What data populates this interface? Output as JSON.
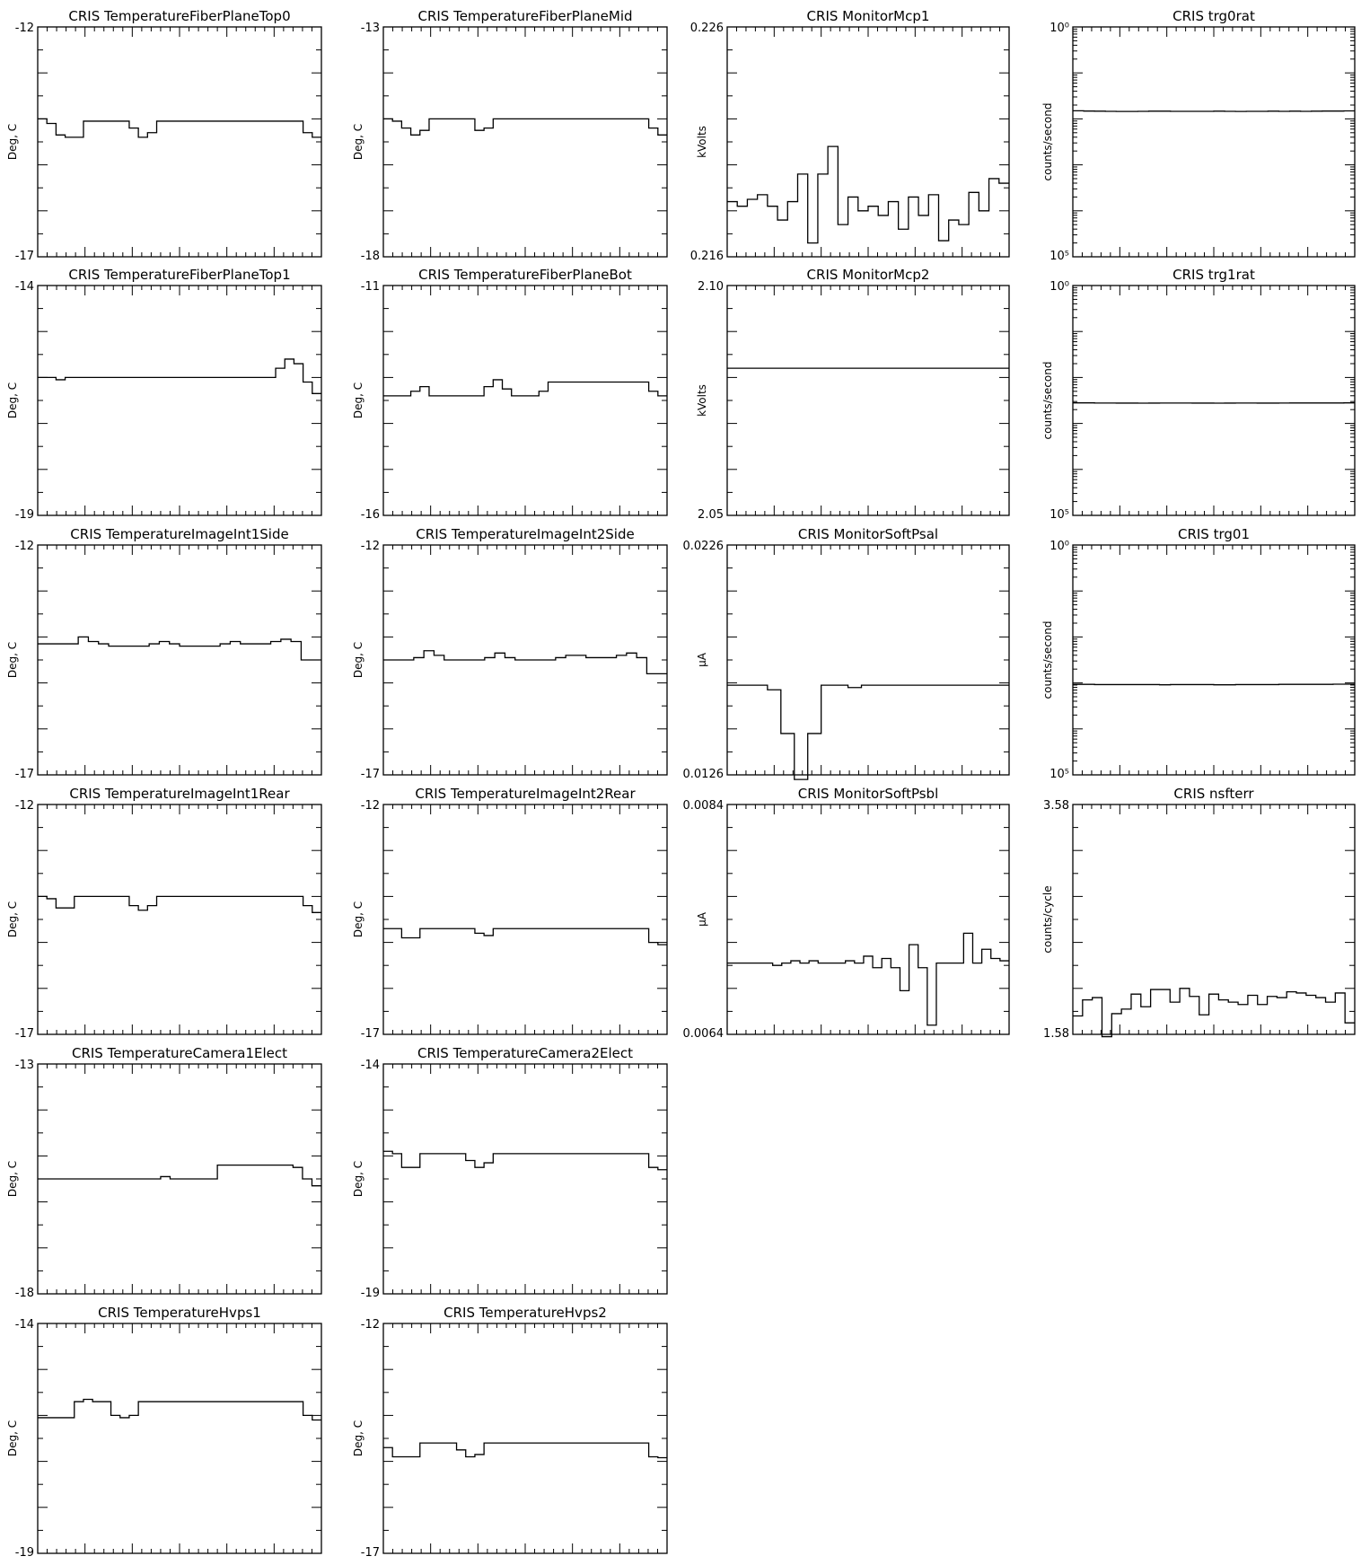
{
  "chart_data": [
    {
      "type": "line",
      "title": "CRIS  TemperatureFiberPlaneTop0",
      "ylabel": "Deg, C",
      "ylim": [
        -17,
        -12
      ],
      "ytick_labels": [
        "-12",
        "-17"
      ],
      "values": [
        -14,
        -14.1,
        -14.35,
        -14.4,
        -14.4,
        -14.05,
        -14.05,
        -14.05,
        -14.05,
        -14.05,
        -14.2,
        -14.4,
        -14.3,
        -14.05,
        -14.05,
        -14.05,
        -14.05,
        -14.05,
        -14.05,
        -14.05,
        -14.05,
        -14.05,
        -14.05,
        -14.05,
        -14.05,
        -14.05,
        -14.05,
        -14.05,
        -14.05,
        -14.3,
        -14.4
      ]
    },
    {
      "type": "line",
      "title": "CRIS  TemperatureFiberPlaneMid",
      "ylabel": "Deg, C",
      "ylim": [
        -18,
        -13
      ],
      "ytick_labels": [
        "-13",
        "-18"
      ],
      "values": [
        -15,
        -15.05,
        -15.2,
        -15.35,
        -15.25,
        -15.0,
        -15.0,
        -15.0,
        -15.0,
        -15.0,
        -15.25,
        -15.2,
        -15.0,
        -15.0,
        -15.0,
        -15.0,
        -15.0,
        -15.0,
        -15.0,
        -15.0,
        -15.0,
        -15.0,
        -15.0,
        -15.0,
        -15.0,
        -15.0,
        -15.0,
        -15.0,
        -15.0,
        -15.2,
        -15.35
      ]
    },
    {
      "type": "line",
      "title": "CRIS  MonitorMcp1",
      "ylabel": "kVolts",
      "ylim": [
        0.216,
        0.226
      ],
      "ytick_labels": [
        "0.226",
        "0.216"
      ],
      "values": [
        0.2184,
        0.2182,
        0.2185,
        0.2187,
        0.2182,
        0.2176,
        0.2184,
        0.2196,
        0.2166,
        0.2196,
        0.2208,
        0.2174,
        0.2186,
        0.218,
        0.2182,
        0.2178,
        0.2184,
        0.2172,
        0.2186,
        0.2178,
        0.2187,
        0.2167,
        0.2176,
        0.2174,
        0.2188,
        0.218,
        0.2194,
        0.2192
      ]
    },
    {
      "type": "line",
      "title": "CRIS  trg0rat",
      "ylabel": "counts/second",
      "yscale": "log",
      "ylim": [
        1,
        100000
      ],
      "ytick_labels": [
        "10⁰",
        "10⁵"
      ],
      "values": [
        1500,
        1480,
        1470,
        1460,
        1450,
        1450,
        1460,
        1470,
        1470,
        1460,
        1460,
        1460,
        1460,
        1470,
        1460,
        1450,
        1460,
        1460,
        1470,
        1460,
        1470,
        1460,
        1470,
        1480,
        1480,
        1490
      ]
    },
    {
      "type": "line",
      "title": "CRIS  TemperatureFiberPlaneTop1",
      "ylabel": "Deg, C",
      "ylim": [
        -19,
        -14
      ],
      "ytick_labels": [
        "-14",
        "-19"
      ],
      "values": [
        -16.0,
        -16.0,
        -16.05,
        -16.0,
        -16.0,
        -16.0,
        -16.0,
        -16.0,
        -16.0,
        -16.0,
        -16.0,
        -16.0,
        -16.0,
        -16.0,
        -16.0,
        -16.0,
        -16.0,
        -16.0,
        -16.0,
        -16.0,
        -16.0,
        -16.0,
        -16.0,
        -16.0,
        -16.0,
        -16.0,
        -15.8,
        -15.6,
        -15.7,
        -16.1,
        -16.35
      ]
    },
    {
      "type": "line",
      "title": "CRIS  TemperatureFiberPlaneBot",
      "ylabel": "Deg, C",
      "ylim": [
        -16,
        -11
      ],
      "ytick_labels": [
        "-11",
        "-16"
      ],
      "values": [
        -13.4,
        -13.4,
        -13.4,
        -13.3,
        -13.2,
        -13.4,
        -13.4,
        -13.4,
        -13.4,
        -13.4,
        -13.4,
        -13.2,
        -13.05,
        -13.25,
        -13.4,
        -13.4,
        -13.4,
        -13.3,
        -13.1,
        -13.1,
        -13.1,
        -13.1,
        -13.1,
        -13.1,
        -13.1,
        -13.1,
        -13.1,
        -13.1,
        -13.1,
        -13.3,
        -13.4
      ]
    },
    {
      "type": "line",
      "title": "CRIS  MonitorMcp2",
      "ylabel": "kVolts",
      "ylim": [
        2.05,
        2.1
      ],
      "ytick_labels": [
        "2.10",
        "2.05"
      ],
      "values": [
        2.082,
        2.082
      ]
    },
    {
      "type": "line",
      "title": "CRIS  trg1rat",
      "ylabel": "counts/second",
      "yscale": "log",
      "ylim": [
        1,
        100000
      ],
      "ytick_labels": [
        "10⁰",
        "10⁵"
      ],
      "values": [
        280,
        280,
        278,
        278,
        277,
        277,
        276,
        277,
        278,
        278,
        278,
        277,
        277,
        276,
        277,
        278,
        278,
        277,
        277,
        278,
        279,
        279,
        279,
        279,
        279,
        280
      ]
    },
    {
      "type": "line",
      "title": "CRIS  TemperatureImageInt1Side",
      "ylabel": "Deg, C",
      "ylim": [
        -17,
        -12
      ],
      "ytick_labels": [
        "-12",
        "-17"
      ],
      "values": [
        -14.15,
        -14.15,
        -14.15,
        -14.15,
        -14.0,
        -14.1,
        -14.15,
        -14.2,
        -14.2,
        -14.2,
        -14.2,
        -14.15,
        -14.1,
        -14.15,
        -14.2,
        -14.2,
        -14.2,
        -14.2,
        -14.15,
        -14.1,
        -14.15,
        -14.15,
        -14.15,
        -14.1,
        -14.05,
        -14.1,
        -14.5,
        -14.5
      ]
    },
    {
      "type": "line",
      "title": "CRIS  TemperatureImageInt2Side",
      "ylabel": "Deg, C",
      "ylim": [
        -17,
        -12
      ],
      "ytick_labels": [
        "-12",
        "-17"
      ],
      "values": [
        -14.5,
        -14.5,
        -14.5,
        -14.45,
        -14.3,
        -14.4,
        -14.5,
        -14.5,
        -14.5,
        -14.5,
        -14.45,
        -14.35,
        -14.45,
        -14.5,
        -14.5,
        -14.5,
        -14.5,
        -14.45,
        -14.4,
        -14.4,
        -14.45,
        -14.45,
        -14.45,
        -14.4,
        -14.35,
        -14.45,
        -14.8,
        -14.8
      ]
    },
    {
      "type": "line",
      "title": "CRIS  MonitorSoftPsal",
      "ylabel": "μA",
      "ylim": [
        0.0126,
        0.0226
      ],
      "ytick_labels": [
        "0.0226",
        "0.0126"
      ],
      "values": [
        0.0165,
        0.0165,
        0.0165,
        0.0163,
        0.0144,
        0.0124,
        0.0144,
        0.0165,
        0.0165,
        0.0164,
        0.0165,
        0.0165,
        0.0165,
        0.0165,
        0.0165,
        0.0165,
        0.0165,
        0.0165,
        0.0165,
        0.0165,
        0.0165
      ]
    },
    {
      "type": "line",
      "title": "CRIS  trg01",
      "ylabel": "counts/second",
      "yscale": "log",
      "ylim": [
        1,
        100000
      ],
      "ytick_labels": [
        "10⁰",
        "10⁵"
      ],
      "values": [
        93,
        93,
        92,
        92,
        92,
        92,
        92,
        92,
        91,
        92,
        92,
        92,
        92,
        91,
        91,
        92,
        92,
        92,
        92,
        93,
        93,
        93,
        93,
        93,
        94,
        94
      ]
    },
    {
      "type": "line",
      "title": "CRIS  TemperatureImageInt1Rear",
      "ylabel": "Deg, C",
      "ylim": [
        -17,
        -12
      ],
      "ytick_labels": [
        "-12",
        "-17"
      ],
      "values": [
        -14.0,
        -14.05,
        -14.25,
        -14.25,
        -14.0,
        -14.0,
        -14.0,
        -14.0,
        -14.0,
        -14.0,
        -14.2,
        -14.3,
        -14.2,
        -14.0,
        -14.0,
        -14.0,
        -14.0,
        -14.0,
        -14.0,
        -14.0,
        -14.0,
        -14.0,
        -14.0,
        -14.0,
        -14.0,
        -14.0,
        -14.0,
        -14.0,
        -14.0,
        -14.2,
        -14.35
      ]
    },
    {
      "type": "line",
      "title": "CRIS  TemperatureImageInt2Rear",
      "ylabel": "Deg, C",
      "ylim": [
        -17,
        -12
      ],
      "ytick_labels": [
        "-12",
        "-17"
      ],
      "values": [
        -14.7,
        -14.7,
        -14.9,
        -14.9,
        -14.7,
        -14.7,
        -14.7,
        -14.7,
        -14.7,
        -14.7,
        -14.8,
        -14.85,
        -14.7,
        -14.7,
        -14.7,
        -14.7,
        -14.7,
        -14.7,
        -14.7,
        -14.7,
        -14.7,
        -14.7,
        -14.7,
        -14.7,
        -14.7,
        -14.7,
        -14.7,
        -14.7,
        -14.7,
        -15.0,
        -15.05
      ]
    },
    {
      "type": "line",
      "title": "CRIS  MonitorSoftPsbl",
      "ylabel": "μA",
      "ylim": [
        0.0064,
        0.0084
      ],
      "ytick_labels": [
        "0.0084",
        "0.0064"
      ],
      "values": [
        0.00702,
        0.00702,
        0.00702,
        0.00702,
        0.00702,
        0.007,
        0.00702,
        0.00704,
        0.00702,
        0.00704,
        0.00702,
        0.00702,
        0.00702,
        0.00704,
        0.00702,
        0.00708,
        0.00698,
        0.00706,
        0.00698,
        0.00678,
        0.00718,
        0.00698,
        0.00648,
        0.00702,
        0.00702,
        0.00702,
        0.00728,
        0.00702,
        0.00714,
        0.00706,
        0.00704
      ]
    },
    {
      "type": "line",
      "title": "CRIS  nsfterr",
      "ylabel": "counts/cycle",
      "ylim": [
        1.58,
        3.58
      ],
      "ytick_labels": [
        "3.58",
        "1.58"
      ],
      "values": [
        1.74,
        1.88,
        1.9,
        1.56,
        1.76,
        1.8,
        1.93,
        1.82,
        1.97,
        1.97,
        1.86,
        1.98,
        1.91,
        1.75,
        1.93,
        1.88,
        1.86,
        1.84,
        1.92,
        1.84,
        1.91,
        1.9,
        1.95,
        1.94,
        1.92,
        1.9,
        1.86,
        1.94,
        1.68
      ]
    },
    {
      "type": "line",
      "title": "CRIS  TemperatureCamera1Elect",
      "ylabel": "Deg, C",
      "ylim": [
        -18,
        -13
      ],
      "ytick_labels": [
        "-13",
        "-18"
      ],
      "values": [
        -15.5,
        -15.5,
        -15.5,
        -15.5,
        -15.5,
        -15.5,
        -15.5,
        -15.5,
        -15.5,
        -15.5,
        -15.5,
        -15.5,
        -15.5,
        -15.45,
        -15.5,
        -15.5,
        -15.5,
        -15.5,
        -15.5,
        -15.2,
        -15.2,
        -15.2,
        -15.2,
        -15.2,
        -15.2,
        -15.2,
        -15.2,
        -15.25,
        -15.5,
        -15.65
      ]
    },
    {
      "type": "line",
      "title": "CRIS  TemperatureCamera2Elect",
      "ylabel": "Deg, C",
      "ylim": [
        -19,
        -14
      ],
      "ytick_labels": [
        "-14",
        "-19"
      ],
      "values": [
        -15.9,
        -15.95,
        -16.25,
        -16.25,
        -15.95,
        -15.95,
        -15.95,
        -15.95,
        -15.95,
        -16.1,
        -16.25,
        -16.15,
        -15.95,
        -15.95,
        -15.95,
        -15.95,
        -15.95,
        -15.95,
        -15.95,
        -15.95,
        -15.95,
        -15.95,
        -15.95,
        -15.95,
        -15.95,
        -15.95,
        -15.95,
        -15.95,
        -15.95,
        -16.25,
        -16.3
      ]
    },
    {
      "type": "line",
      "title": "CRIS  TemperatureHvps1",
      "ylabel": "Deg, C",
      "ylim": [
        -19,
        -14
      ],
      "ytick_labels": [
        "-14",
        "-19"
      ],
      "values": [
        -16.05,
        -16.05,
        -16.05,
        -16.05,
        -15.7,
        -15.65,
        -15.7,
        -15.7,
        -16.0,
        -16.05,
        -16.0,
        -15.7,
        -15.7,
        -15.7,
        -15.7,
        -15.7,
        -15.7,
        -15.7,
        -15.7,
        -15.7,
        -15.7,
        -15.7,
        -15.7,
        -15.7,
        -15.7,
        -15.7,
        -15.7,
        -15.7,
        -15.7,
        -16.0,
        -16.1
      ]
    },
    {
      "type": "line",
      "title": "CRIS  TemperatureHvps2",
      "ylabel": "Deg, C",
      "ylim": [
        -17,
        -12
      ],
      "ytick_labels": [
        "-12",
        "-17"
      ],
      "values": [
        -14.7,
        -14.9,
        -14.9,
        -14.9,
        -14.6,
        -14.6,
        -14.6,
        -14.6,
        -14.75,
        -14.9,
        -14.85,
        -14.6,
        -14.6,
        -14.6,
        -14.6,
        -14.6,
        -14.6,
        -14.6,
        -14.6,
        -14.6,
        -14.6,
        -14.6,
        -14.6,
        -14.6,
        -14.6,
        -14.6,
        -14.6,
        -14.6,
        -14.6,
        -14.9,
        -14.92
      ]
    }
  ]
}
